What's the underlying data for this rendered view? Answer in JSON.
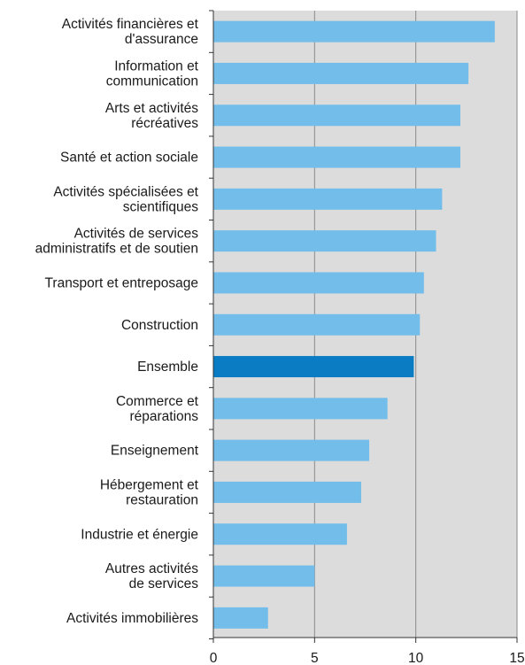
{
  "chart_data": {
    "type": "bar",
    "orientation": "horizontal",
    "categories": [
      "Activités financières et\nd'assurance",
      "Information et\ncommunication",
      "Arts et activités\nrécréatives",
      "Santé et action sociale",
      "Activités spécialisées et\nscientifiques",
      "Activités de services\nadministratifs et de soutien",
      "Transport et entreposage",
      "Construction",
      "Ensemble",
      "Commerce et\nréparations",
      "Enseignement",
      "Hébergement et\nrestauration",
      "Industrie et énergie",
      "Autres activités\nde services",
      "Activités immobilières"
    ],
    "values": [
      13.9,
      12.6,
      12.2,
      12.2,
      11.3,
      11.0,
      10.4,
      10.2,
      9.9,
      8.6,
      7.7,
      7.3,
      6.6,
      5.0,
      2.7
    ],
    "highlight_category": "Ensemble",
    "xlim": [
      0,
      15
    ],
    "xticks": [
      "0",
      "5",
      "10",
      "15"
    ],
    "grid": true,
    "colors": {
      "bar": "#72bde9",
      "highlight": "#0a7cc4",
      "plot_background": "#dcdcdc",
      "gridline": "#8a8a8a",
      "axis": "#333333"
    }
  }
}
